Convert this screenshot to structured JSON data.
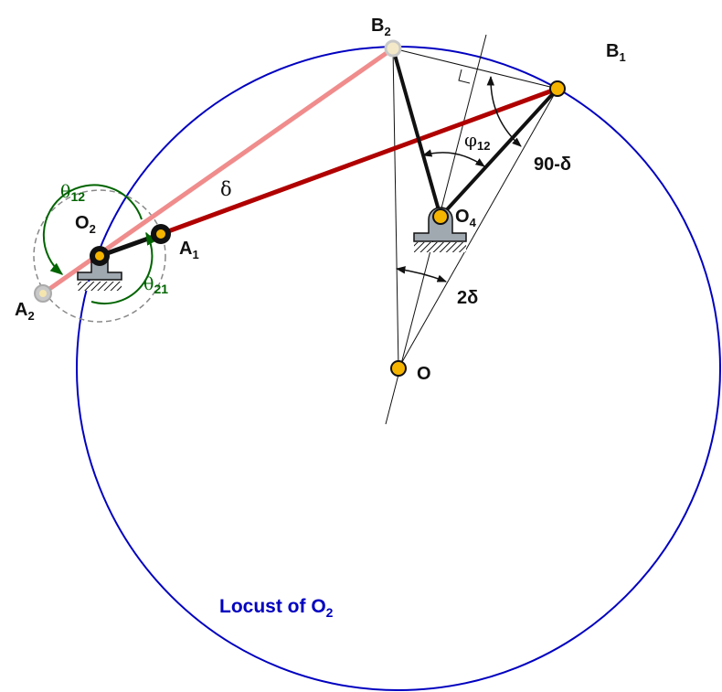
{
  "labels": {
    "B": "B",
    "A": "A",
    "O": "O",
    "sub1": "1",
    "sub2": "2",
    "sub4": "4",
    "sub12": "12",
    "sub21": "21",
    "delta": "δ",
    "theta": "θ",
    "phi": "φ",
    "ninety_minus_delta": "90-δ",
    "two_delta": "2δ",
    "locust_prefix": "Locust of O"
  },
  "colors": {
    "locus_circle": "#0000c0",
    "link_b1": "#b00000",
    "link_b2": "#f08c8c",
    "theta_arcs": "#006400",
    "pivot_fill": "#f5b400",
    "ground": "#a0a8b0",
    "faded_pivot": "#c8c8c8"
  }
}
